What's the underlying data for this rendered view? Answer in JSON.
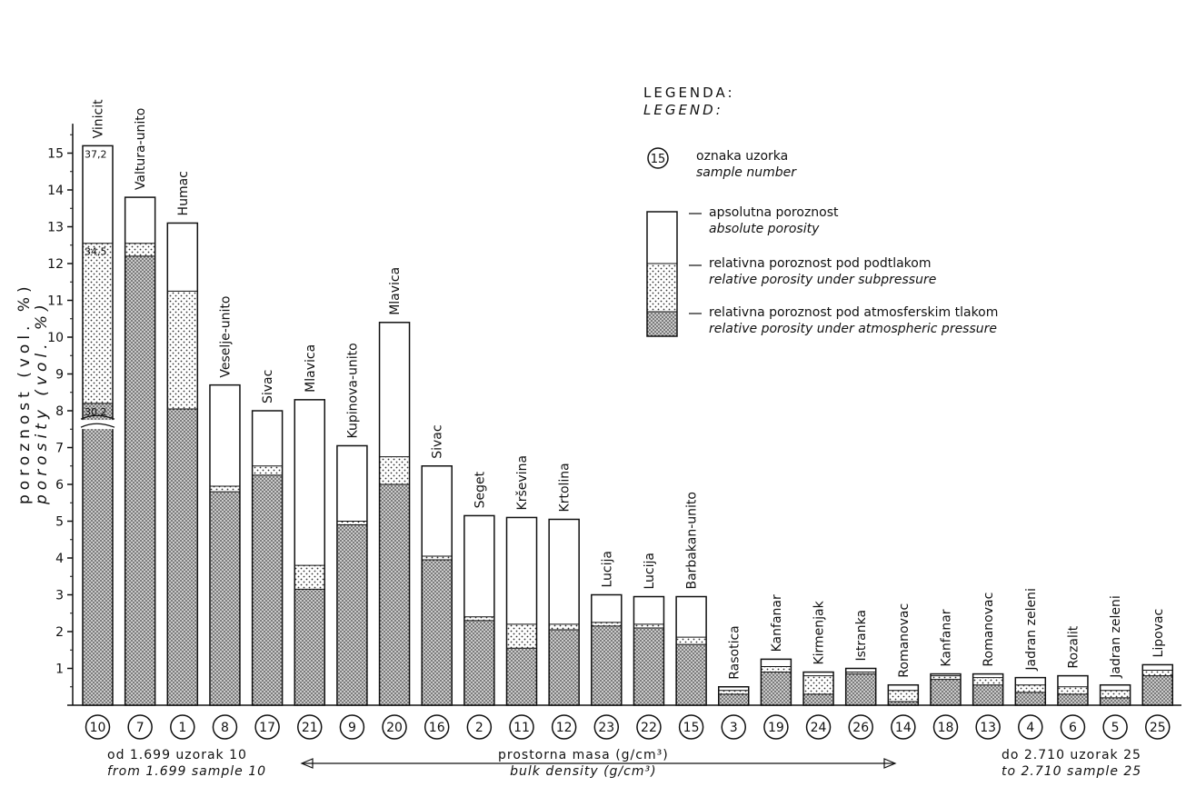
{
  "chart_data": {
    "type": "bar",
    "stacked": true,
    "yaxis": {
      "label_hr": "poroznost (vol. %)",
      "label_en": "porosity (vol. %)",
      "ticks": [
        1,
        2,
        3,
        4,
        5,
        6,
        7,
        8,
        9,
        10,
        11,
        12,
        13,
        14,
        15
      ],
      "ylim": [
        0,
        15.8
      ],
      "axis_break": true
    },
    "series": [
      {
        "name": "relative porosity under atmospheric pressure",
        "pattern": "dense-dots"
      },
      {
        "name": "relative porosity under subpressure",
        "pattern": "sparse-dots"
      },
      {
        "name": "absolute porosity",
        "pattern": "blank"
      }
    ],
    "bars": [
      {
        "sample": "10",
        "name": "Vinicit",
        "atm": 8.2,
        "sub": 12.55,
        "abs": 15.2,
        "annot": [
          "37,2",
          "34,5",
          "30,2"
        ]
      },
      {
        "sample": "7",
        "name": "Valtura-unito",
        "atm": 12.2,
        "sub": 12.55,
        "abs": 13.8
      },
      {
        "sample": "1",
        "name": "Humac",
        "atm": 8.05,
        "sub": 11.25,
        "abs": 13.1
      },
      {
        "sample": "8",
        "name": "Veselje-unito",
        "atm": 5.8,
        "sub": 5.95,
        "abs": 8.7
      },
      {
        "sample": "17",
        "name": "Sivac",
        "atm": 6.25,
        "sub": 6.5,
        "abs": 8.0
      },
      {
        "sample": "21",
        "name": "Mlavica",
        "atm": 3.15,
        "sub": 3.8,
        "abs": 8.3
      },
      {
        "sample": "9",
        "name": "Kupinova-unito",
        "atm": 4.9,
        "sub": 5.0,
        "abs": 7.05
      },
      {
        "sample": "20",
        "name": "Mlavica",
        "atm": 6.0,
        "sub": 6.75,
        "abs": 10.4
      },
      {
        "sample": "16",
        "name": "Sivac",
        "atm": 3.95,
        "sub": 4.05,
        "abs": 6.5
      },
      {
        "sample": "2",
        "name": "Seget",
        "atm": 2.3,
        "sub": 2.4,
        "abs": 5.15
      },
      {
        "sample": "11",
        "name": "Krševina",
        "atm": 1.55,
        "sub": 2.2,
        "abs": 5.1
      },
      {
        "sample": "12",
        "name": "Krtolina",
        "atm": 2.05,
        "sub": 2.2,
        "abs": 5.05
      },
      {
        "sample": "23",
        "name": "Lucija",
        "atm": 2.15,
        "sub": 2.25,
        "abs": 3.0
      },
      {
        "sample": "22",
        "name": "Lucija",
        "atm": 2.1,
        "sub": 2.2,
        "abs": 2.95
      },
      {
        "sample": "15",
        "name": "Barbakan-unito",
        "atm": 1.65,
        "sub": 1.85,
        "abs": 2.95
      },
      {
        "sample": "3",
        "name": "Rasotica",
        "atm": 0.3,
        "sub": 0.4,
        "abs": 0.5
      },
      {
        "sample": "19",
        "name": "Kanfanar",
        "atm": 0.9,
        "sub": 1.05,
        "abs": 1.25
      },
      {
        "sample": "24",
        "name": "Kirmenjak",
        "atm": 0.3,
        "sub": 0.8,
        "abs": 0.9
      },
      {
        "sample": "26",
        "name": "Istranka",
        "atm": 0.85,
        "sub": 0.9,
        "abs": 1.0
      },
      {
        "sample": "14",
        "name": "Romanovac",
        "atm": 0.1,
        "sub": 0.4,
        "abs": 0.55
      },
      {
        "sample": "18",
        "name": "Kanfanar",
        "atm": 0.7,
        "sub": 0.8,
        "abs": 0.85
      },
      {
        "sample": "13",
        "name": "Romanovac",
        "atm": 0.55,
        "sub": 0.75,
        "abs": 0.85
      },
      {
        "sample": "4",
        "name": "Jadran zeleni",
        "atm": 0.35,
        "sub": 0.55,
        "abs": 0.75
      },
      {
        "sample": "6",
        "name": "Rozalit",
        "atm": 0.3,
        "sub": 0.5,
        "abs": 0.8
      },
      {
        "sample": "5",
        "name": "Jadran zeleni",
        "atm": 0.2,
        "sub": 0.4,
        "abs": 0.55
      },
      {
        "sample": "25",
        "name": "Lipovac",
        "atm": 0.8,
        "sub": 0.95,
        "abs": 1.1
      }
    ]
  },
  "legend": {
    "title_hr": "LEGENDA:",
    "title_en": "LEGEND:",
    "sample_symbol": "15",
    "sample_hr": "oznaka uzorka",
    "sample_en": "sample number",
    "abs_hr": "apsolutna poroznost",
    "abs_en": "absolute porosity",
    "sub_hr": "relativna poroznost pod podtlakom",
    "sub_en": "relative porosity under subpressure",
    "atm_hr": "relativna poroznost pod atmosferskim tlakom",
    "atm_en": "relative porosity under atmospheric pressure"
  },
  "footer": {
    "left_hr": "od 1.699 uzorak 10",
    "left_en": "from 1.699 sample 10",
    "center_hr": "prostorna masa (g/cm³)",
    "center_en": "bulk density (g/cm³)",
    "right_hr": "do 2.710 uzorak 25",
    "right_en": "to 2.710 sample 25"
  }
}
